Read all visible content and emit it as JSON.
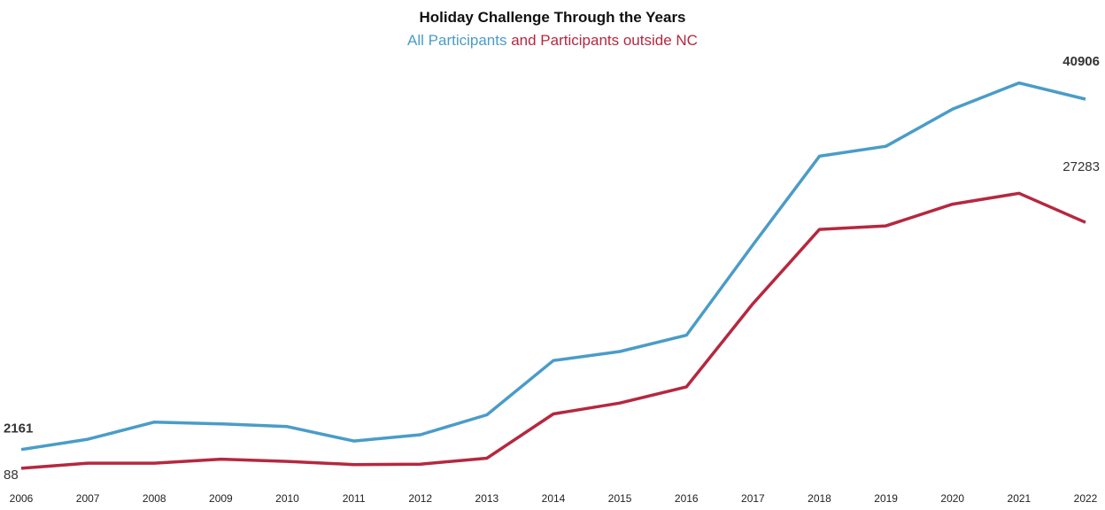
{
  "chart_data": {
    "type": "line",
    "title": "Holiday Challenge Through the Years",
    "subtitle_parts": [
      "All Participants",
      "and Participants outside NC"
    ],
    "x": [
      "2006",
      "2007",
      "2008",
      "2009",
      "2010",
      "2011",
      "2012",
      "2013",
      "2014",
      "2015",
      "2016",
      "2017",
      "2018",
      "2019",
      "2020",
      "2021",
      "2022"
    ],
    "series": [
      {
        "name": "All Participants",
        "color": "#4a9cc8",
        "values": [
          2161,
          3300,
          5200,
          5000,
          4700,
          3100,
          3800,
          6000,
          12000,
          13000,
          14800,
          24800,
          34600,
          35700,
          39800,
          42700,
          40906
        ]
      },
      {
        "name": "Participants outside NC",
        "color": "#b5283f",
        "values": [
          88,
          650,
          650,
          1100,
          850,
          500,
          550,
          1200,
          6100,
          7300,
          9100,
          18300,
          26500,
          26900,
          29300,
          30500,
          27283
        ]
      }
    ],
    "labels": [
      {
        "text": "2161",
        "series": 0,
        "point": "first",
        "bold": true
      },
      {
        "text": "88",
        "series": 1,
        "point": "first",
        "bold": false
      },
      {
        "text": "40906",
        "series": 0,
        "point": "last",
        "bold": true
      },
      {
        "text": "27283",
        "series": 1,
        "point": "last",
        "bold": false
      }
    ],
    "ylim": [
      -1000,
      46000
    ],
    "grid": false,
    "xlabel": "",
    "ylabel": ""
  }
}
